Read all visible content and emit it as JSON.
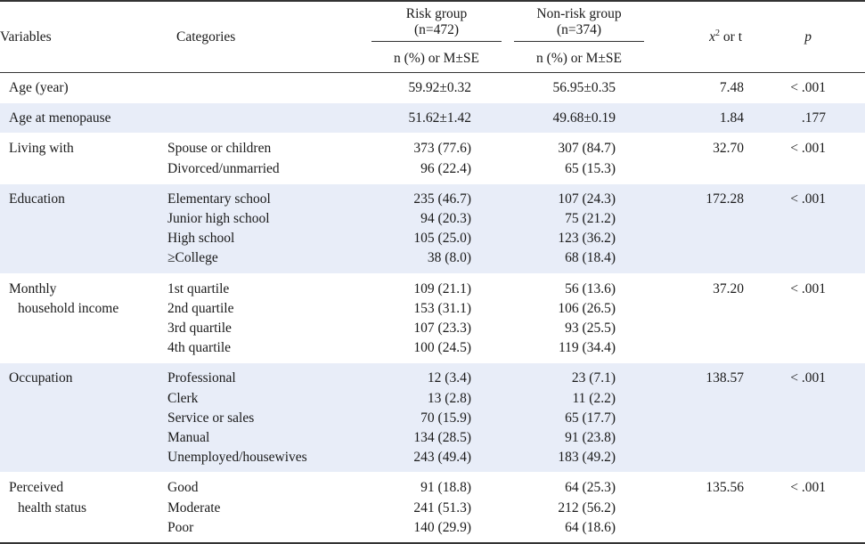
{
  "header": {
    "variables": "Variables",
    "categories": "Categories",
    "risk_group_line1": "Risk group",
    "risk_group_line2": "(n=472)",
    "nonrisk_group_line1": "Non-risk group",
    "nonrisk_group_line2": "(n=374)",
    "stat_x": "x",
    "stat_sup": "2",
    "stat_rest": " or t",
    "p": "p",
    "risk_sub": "n (%) or M±SE",
    "nonrisk_sub": "n (%) or M±SE"
  },
  "rows": [
    {
      "variable": [
        "Age (year)"
      ],
      "categories": [
        ""
      ],
      "risk": [
        "59.92±0.32"
      ],
      "nonrisk": [
        "56.95±0.35"
      ],
      "stat": "7.48",
      "p": "< .001",
      "shade": false
    },
    {
      "variable": [
        "Age at menopause"
      ],
      "categories": [
        ""
      ],
      "risk": [
        "51.62±1.42"
      ],
      "nonrisk": [
        "49.68±0.19"
      ],
      "stat": "1.84",
      "p": ".177",
      "shade": true
    },
    {
      "variable": [
        "Living with"
      ],
      "categories": [
        "Spouse or children",
        "Divorced/unmarried"
      ],
      "risk": [
        "373 (77.6)",
        "96 (22.4)"
      ],
      "nonrisk": [
        "307 (84.7)",
        "65 (15.3)"
      ],
      "stat": "32.70",
      "p": "< .001",
      "shade": false
    },
    {
      "variable": [
        "Education"
      ],
      "categories": [
        "Elementary school",
        "Junior high school",
        "High school",
        "≥College"
      ],
      "risk": [
        "235 (46.7)",
        "94 (20.3)",
        "105 (25.0)",
        "38 (8.0)"
      ],
      "nonrisk": [
        "107 (24.3)",
        "75 (21.2)",
        "123 (36.2)",
        "68 (18.4)"
      ],
      "stat": "172.28",
      "p": "< .001",
      "shade": true
    },
    {
      "variable": [
        "Monthly",
        "household income"
      ],
      "categories": [
        "1st quartile",
        "2nd quartile",
        "3rd quartile",
        "4th quartile"
      ],
      "risk": [
        "109 (21.1)",
        "153 (31.1)",
        "107 (23.3)",
        "100 (24.5)"
      ],
      "nonrisk": [
        "56 (13.6)",
        "106 (26.5)",
        "93 (25.5)",
        "119 (34.4)"
      ],
      "stat": "37.20",
      "p": "< .001",
      "shade": false
    },
    {
      "variable": [
        "Occupation"
      ],
      "categories": [
        "Professional",
        "Clerk",
        "Service or sales",
        "Manual",
        "Unemployed/housewives"
      ],
      "risk": [
        "12 (3.4)",
        "13 (2.8)",
        "70 (15.9)",
        "134 (28.5)",
        "243 (49.4)"
      ],
      "nonrisk": [
        "23 (7.1)",
        "11 (2.2)",
        "65 (17.7)",
        "91 (23.8)",
        "183 (49.2)"
      ],
      "stat": "138.57",
      "p": "< .001",
      "shade": true
    },
    {
      "variable": [
        "Perceived",
        "health status"
      ],
      "categories": [
        "Good",
        "Moderate",
        "Poor"
      ],
      "risk": [
        "91 (18.8)",
        "241 (51.3)",
        "140 (29.9)"
      ],
      "nonrisk": [
        "64 (25.3)",
        "212 (56.2)",
        "64 (18.6)"
      ],
      "stat": "135.56",
      "p": "< .001",
      "shade": false
    }
  ],
  "colors": {
    "shade": "#e8edf8",
    "rule": "#333333",
    "text": "#1a1a1a"
  }
}
